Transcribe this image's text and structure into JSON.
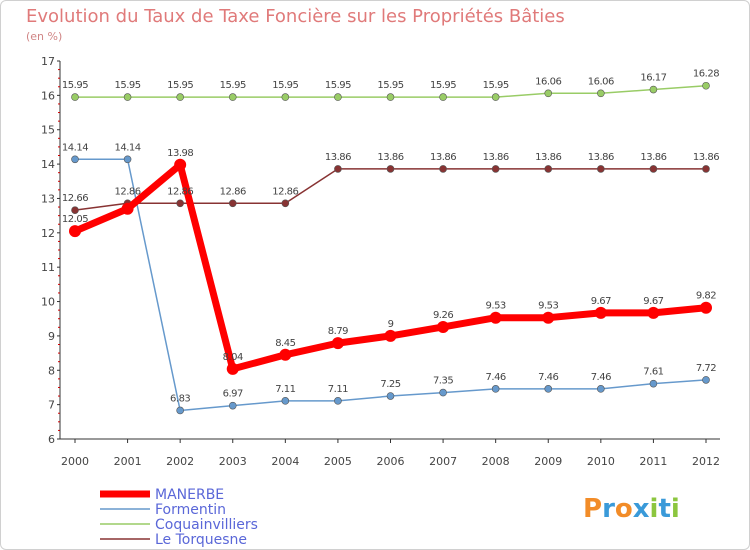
{
  "chart_data": {
    "type": "line",
    "title": "Evolution du Taux de Taxe Foncière sur les Propriétés Bâties",
    "subtitle": "(en %)",
    "x": [
      "2000",
      "2001",
      "2002",
      "2003",
      "2004",
      "2005",
      "2006",
      "2007",
      "2008",
      "2009",
      "2010",
      "2011",
      "2012"
    ],
    "ylim": [
      6,
      17
    ],
    "yticks": [
      "6",
      "7",
      "8",
      "9",
      "10",
      "11",
      "12",
      "13",
      "14",
      "15",
      "16",
      "17"
    ],
    "grid": false,
    "legend_position": "bottom-left",
    "series": [
      {
        "name": "MANERBE",
        "color": "#ff0000",
        "values": [
          12.05,
          12.7,
          13.98,
          8.04,
          8.45,
          8.79,
          9,
          9.26,
          9.53,
          9.53,
          9.67,
          9.67,
          9.82
        ],
        "labels": [
          "12.05",
          "",
          "13.98",
          "8.04",
          "8.45",
          "8.79",
          "9",
          "9.26",
          "9.53",
          "9.53",
          "9.67",
          "9.67",
          "9.82"
        ]
      },
      {
        "name": "Formentin",
        "color": "#6699cc",
        "values": [
          14.14,
          14.14,
          6.83,
          6.97,
          7.11,
          7.11,
          7.25,
          7.35,
          7.46,
          7.46,
          7.46,
          7.61,
          7.72
        ],
        "labels": [
          "14.14",
          "14.14",
          "6.83",
          "6.97",
          "7.11",
          "7.11",
          "7.25",
          "7.35",
          "7.46",
          "7.46",
          "7.46",
          "7.61",
          "7.72"
        ]
      },
      {
        "name": "Coquainvilliers",
        "color": "#99cc66",
        "values": [
          15.95,
          15.95,
          15.95,
          15.95,
          15.95,
          15.95,
          15.95,
          15.95,
          15.95,
          16.06,
          16.06,
          16.17,
          16.28
        ],
        "labels": [
          "15.95",
          "15.95",
          "15.95",
          "15.95",
          "15.95",
          "15.95",
          "15.95",
          "15.95",
          "15.95",
          "16.06",
          "16.06",
          "16.17",
          "16.28"
        ]
      },
      {
        "name": "Le Torquesne",
        "color": "#883333",
        "values": [
          12.66,
          12.86,
          12.86,
          12.86,
          12.86,
          13.86,
          13.86,
          13.86,
          13.86,
          13.86,
          13.86,
          13.86,
          13.86
        ],
        "labels": [
          "12.66",
          "12.86",
          "12.86",
          "12.86",
          "12.86",
          "13.86",
          "13.86",
          "13.86",
          "13.86",
          "13.86",
          "13.86",
          "13.86",
          "13.86"
        ]
      }
    ]
  },
  "logo": {
    "text": "Proxiti",
    "letters": [
      "P",
      "r",
      "o",
      "x",
      "i",
      "t",
      "i"
    ],
    "colors": [
      "#f28c28",
      "#3a9ad9",
      "#f28c28",
      "#3a9ad9",
      "#8cc63f",
      "#3a9ad9",
      "#8cc63f"
    ]
  }
}
